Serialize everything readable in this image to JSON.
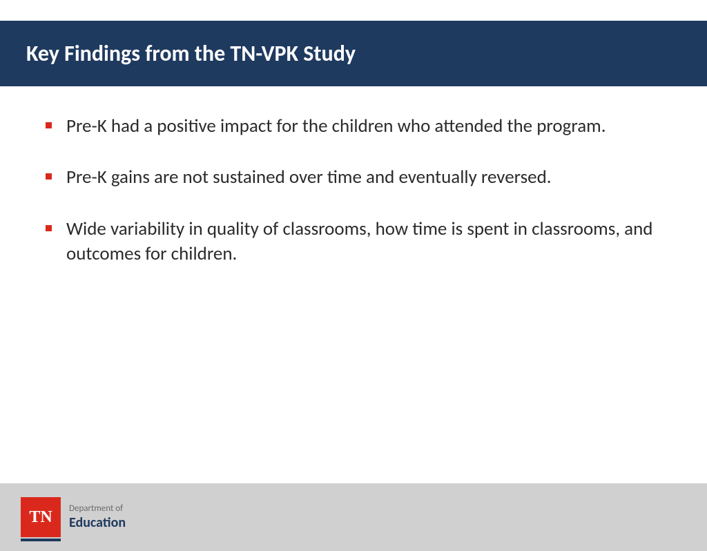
{
  "header": {
    "title": "Key Findings from the TN-VPK Study",
    "background_color": "#1f3a5f",
    "text_color": "#ffffff",
    "title_fontsize": 32
  },
  "bullets": [
    "Pre-K had a positive impact for the children who attended the program.",
    "Pre-K gains are not sustained over time and eventually reversed.",
    "Wide variability in quality of classrooms, how time is spent in classrooms, and outcomes for children."
  ],
  "bullet_style": {
    "marker_color": "#da291c",
    "text_color": "#2b2b2b",
    "fontsize": 27
  },
  "footer": {
    "background_color": "#d0d0d0",
    "logo": {
      "abbrev": "TN",
      "background_color": "#da291c",
      "text_color": "#ffffff"
    },
    "department": {
      "prefix": "Department of",
      "name": "Education",
      "prefix_color": "#6b6b6b",
      "name_color": "#1f3a5f"
    }
  }
}
